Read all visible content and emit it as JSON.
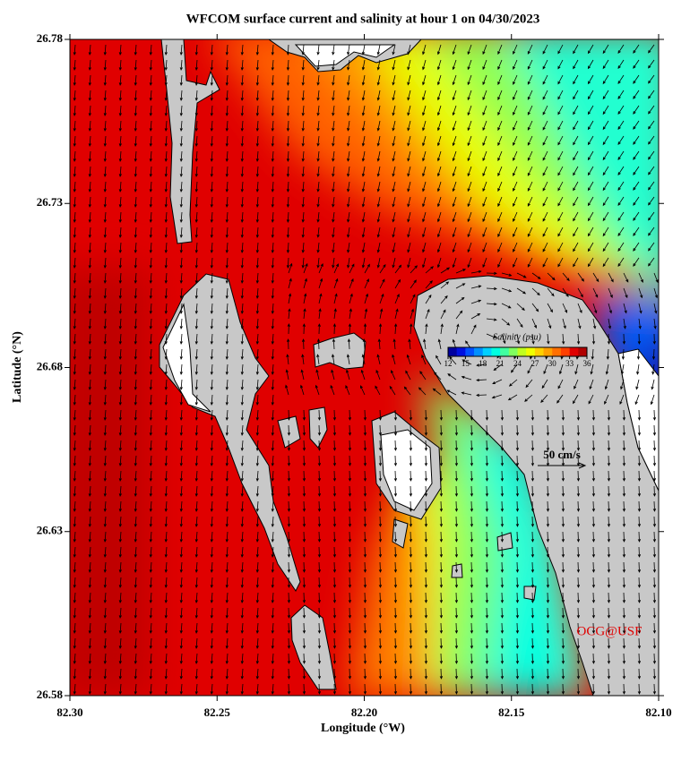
{
  "title": "WFCOM surface current and salinity at hour 1 on 04/30/2023",
  "x_label": "Longitude (°W)",
  "y_label": "Latitude (°N)",
  "xlim": [
    82.3,
    82.1
  ],
  "xticks": [
    {
      "value": 82.3,
      "label": "82.30"
    },
    82.25,
    {
      "value": 82.2,
      "label": "82.20"
    },
    82.15,
    {
      "value": 82.1,
      "label": "82.10"
    }
  ],
  "ylim": [
    26.58,
    26.78
  ],
  "yticks": [
    26.58,
    26.63,
    26.68,
    26.73,
    26.78
  ],
  "colorbar": {
    "title": "Salinity (psu)",
    "clim": [
      12,
      36
    ],
    "ticks": [
      12,
      15,
      18,
      21,
      24,
      27,
      30,
      33,
      36
    ],
    "colors": [
      "#0000a0",
      "#0010e0",
      "#0050ff",
      "#0090ff",
      "#00d0ff",
      "#00ffe0",
      "#40ffa0",
      "#80ff60",
      "#c0ff20",
      "#f0ff00",
      "#ffd000",
      "#ffa000",
      "#ff7000",
      "#ff4000",
      "#e00000",
      "#b00000"
    ]
  },
  "scale_label": "50 cm/s",
  "credit": "OCG@USF"
}
